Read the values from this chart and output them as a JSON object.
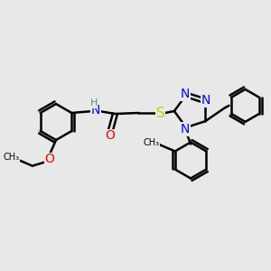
{
  "background_color": "#e8e8e8",
  "bond_color": "#000000",
  "bond_width": 1.8,
  "atom_colors": {
    "N": "#0000ee",
    "O": "#ee0000",
    "S": "#cccc00",
    "H": "#5a9090",
    "C": "#000000"
  },
  "font_size": 9,
  "figsize": [
    3.0,
    3.0
  ],
  "dpi": 100
}
